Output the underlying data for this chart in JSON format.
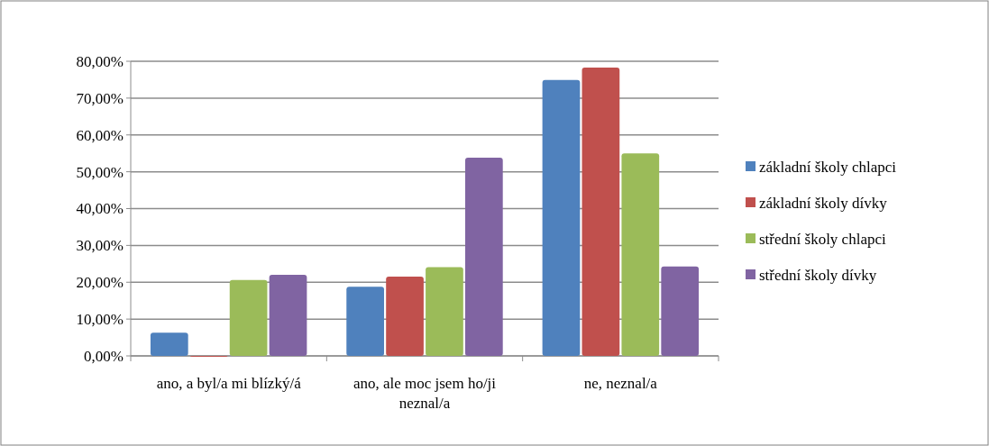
{
  "chart_data": {
    "type": "bar",
    "categories": [
      "ano, a byl/a mi blízký/á",
      "ano, ale moc jsem ho/ji neznal/a",
      "ne, neznal/a"
    ],
    "series": [
      {
        "name": "základní školy chlapci",
        "color": "#4f81bd",
        "values": [
          6.3,
          18.8,
          74.9
        ]
      },
      {
        "name": "základní školy dívky",
        "color": "#c0504d",
        "values": [
          0,
          21.5,
          78.3
        ]
      },
      {
        "name": "střední školy chlapci",
        "color": "#9bbb59",
        "values": [
          20.6,
          24.1,
          55
        ]
      },
      {
        "name": "střední školy dívky",
        "color": "#8064a2",
        "values": [
          22,
          53.8,
          24.3
        ]
      }
    ],
    "ylim": [
      0,
      80
    ],
    "yticks": [
      {
        "value": 0,
        "label": "0,00%"
      },
      {
        "value": 10,
        "label": "10,00%"
      },
      {
        "value": 20,
        "label": "20,00%"
      },
      {
        "value": 30,
        "label": "30,00%"
      },
      {
        "value": 40,
        "label": "40,00%"
      },
      {
        "value": 50,
        "label": "50,00%"
      },
      {
        "value": 60,
        "label": "60,00%"
      },
      {
        "value": 70,
        "label": "70,00%"
      },
      {
        "value": 80,
        "label": "80,00%"
      }
    ],
    "grid": "y",
    "legend": "right"
  }
}
